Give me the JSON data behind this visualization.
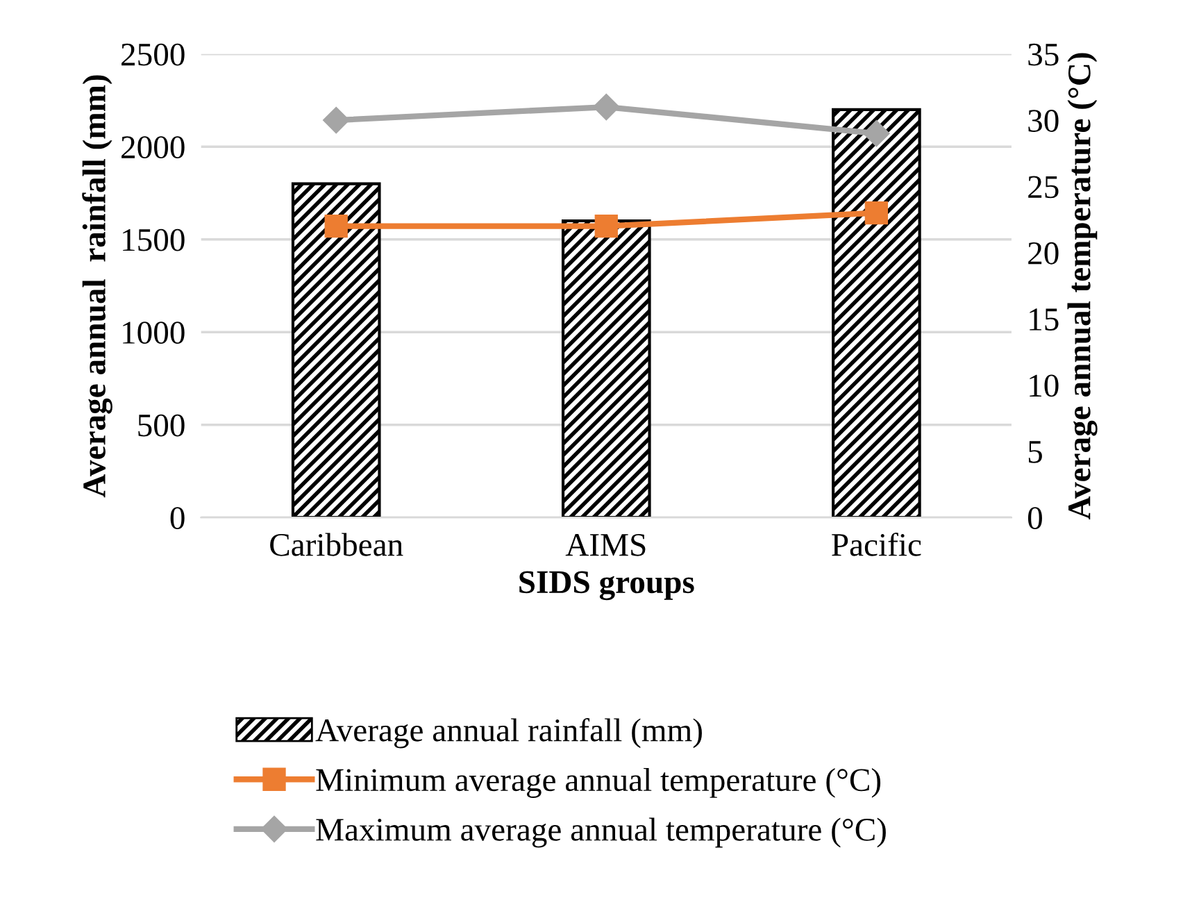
{
  "chart_data": {
    "type": "bar",
    "xlabel": "SIDS groups",
    "ylabel": "Average annual  rainfall (mm)",
    "y2label": "Average annual temperature (°C)",
    "categories": [
      "Caribbean",
      "AIMS",
      "Pacific"
    ],
    "series": [
      {
        "name": "Average annual rainfall (mm)",
        "color": "#000000",
        "values": [
          1800,
          1600,
          2200
        ]
      },
      {
        "name": "Minimum average annual temperature (°C)",
        "type": "line",
        "axis": "y2",
        "marker": "square",
        "color": "#ed7d31",
        "values": [
          22,
          22,
          23
        ]
      },
      {
        "name": "Maximum average annual temperature (°C)",
        "type": "line",
        "axis": "y2",
        "marker": "diamond",
        "color": "#a5a5a5",
        "values": [
          30,
          31,
          29
        ]
      }
    ],
    "ylim": [
      0,
      2500
    ],
    "yticks": [
      0,
      500,
      1000,
      1500,
      2000,
      2500
    ],
    "y2lim": [
      0,
      35
    ],
    "y2ticks": [
      0,
      5,
      10,
      15,
      20,
      25,
      30,
      35
    ],
    "grid": "y",
    "legend": "bottom"
  }
}
